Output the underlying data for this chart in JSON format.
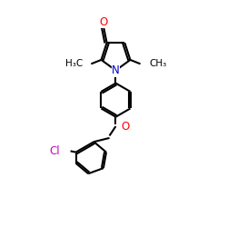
{
  "bg_color": "#ffffff",
  "bond_color": "#000000",
  "bond_lw": 1.5,
  "atom_colors": {
    "N": "#0000cc",
    "O": "#ff0000",
    "Cl": "#cc00cc"
  },
  "font_size": 8.5,
  "small_font_size": 7.5,
  "xlim": [
    0,
    10
  ],
  "ylim": [
    0,
    10
  ]
}
